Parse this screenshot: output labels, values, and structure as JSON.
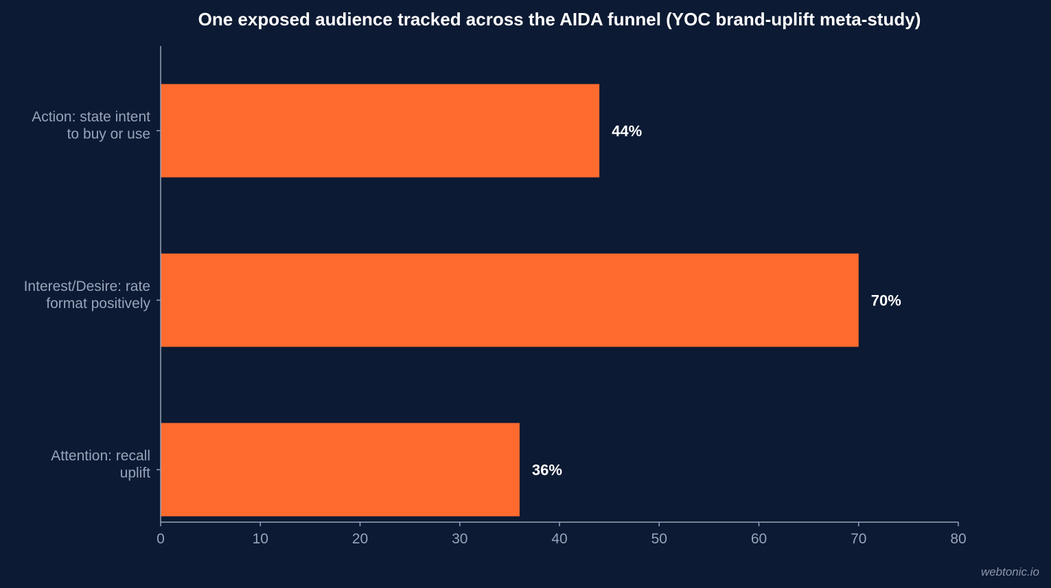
{
  "chart_data": {
    "type": "bar",
    "orientation": "horizontal",
    "title": "One exposed audience tracked across the AIDA funnel (YOC brand-uplift meta-study)",
    "categories": [
      [
        "Action: state intent",
        "to buy or use"
      ],
      [
        "Interest/Desire: rate",
        "format positively"
      ],
      [
        "Attention: recall",
        "uplift"
      ]
    ],
    "values": [
      44,
      70,
      36
    ],
    "value_labels": [
      "44%",
      "70%",
      "36%"
    ],
    "xlim": [
      0,
      80
    ],
    "xticks": [
      0,
      10,
      20,
      30,
      40,
      50,
      60,
      70,
      80
    ],
    "xlabel": "",
    "ylabel": "",
    "grid": false,
    "bar_color": "#ff6b2e",
    "background": "#0c1a33"
  },
  "watermark": "webtonic.io"
}
